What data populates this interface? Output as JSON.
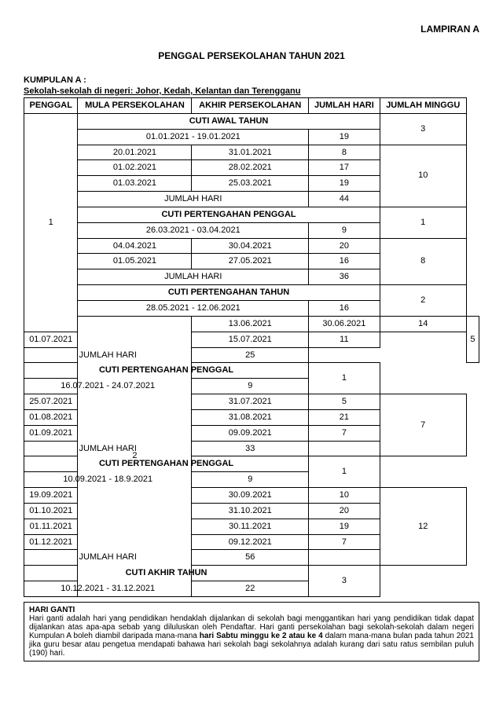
{
  "header": {
    "lampiran": "LAMPIRAN A",
    "title": "PENGGAL PERSEKOLAHAN TAHUN 2021",
    "kumpulan": "KUMPULAN A :",
    "subtitle": "Sekolah-sekolah di negeri: Johor, Kedah, Kelantan dan Terengganu"
  },
  "columns": {
    "penggal": "PENGGAL",
    "mula": "MULA PERSEKOLAHAN",
    "akhir": "AKHIR PERSEKOLAHAN",
    "hari": "JUMLAH HARI",
    "minggu": "JUMLAH MINGGU"
  },
  "sections": {
    "cuti_awal": "CUTI AWAL TAHUN",
    "cuti_ptp": "CUTI PERTENGAHAN PENGGAL",
    "cuti_ptt": "CUTI PERTENGAHAN TAHUN",
    "cuti_akhir": "CUTI AKHIR TAHUN",
    "jumlah_hari": "JUMLAH HARI"
  },
  "p1": {
    "label": "1",
    "awal_range": "01.01.2021  -  19.01.2021",
    "awal_hari": "19",
    "awal_minggu": "3",
    "b1": {
      "r1m": "20.01.2021",
      "r1a": "31.01.2021",
      "r1h": "8",
      "r2m": "01.02.2021",
      "r2a": "28.02.2021",
      "r2h": "17",
      "r3m": "01.03.2021",
      "r3a": "25.03.2021",
      "r3h": "19",
      "minggu": "10",
      "jumlah": "44"
    },
    "ptp1_range": "26.03.2021  -  03.04.2021",
    "ptp1_hari": "9",
    "ptp1_minggu": "1",
    "b2": {
      "r1m": "04.04.2021",
      "r1a": "30.04.2021",
      "r1h": "20",
      "r2m": "01.05.2021",
      "r2a": "27.05.2021",
      "r2h": "16",
      "minggu": "8",
      "jumlah": "36"
    },
    "ptt_range": "28.05.2021  -  12.06.2021",
    "ptt_hari": "16",
    "ptt_minggu": "2"
  },
  "p2": {
    "label": "2",
    "b1": {
      "r1m": "13.06.2021",
      "r1a": "30.06.2021",
      "r1h": "14",
      "r2m": "01.07.2021",
      "r2a": "15.07.2021",
      "r2h": "11",
      "minggu": "5",
      "jumlah": "25"
    },
    "ptp1_range": "16.07.2021  -  24.07.2021",
    "ptp1_hari": "9",
    "ptp1_minggu": "1",
    "b2": {
      "r1m": "25.07.2021",
      "r1a": "31.07.2021",
      "r1h": "5",
      "r2m": "01.08.2021",
      "r2a": "31.08.2021",
      "r2h": "21",
      "r3m": "01.09.2021",
      "r3a": "09.09.2021",
      "r3h": "7",
      "minggu": "7",
      "jumlah": "33"
    },
    "ptp2_range": "10.09.2021  -  18.9.2021",
    "ptp2_hari": "9",
    "ptp2_minggu": "1",
    "b3": {
      "r1m": "19.09.2021",
      "r1a": "30.09.2021",
      "r1h": "10",
      "r2m": "01.10.2021",
      "r2a": "31.10.2021",
      "r2h": "20",
      "r3m": "01.11.2021",
      "r3a": "30.11.2021",
      "r3h": "19",
      "r4m": "01.12.2021",
      "r4a": "09.12.2021",
      "r4h": "7",
      "minggu": "12",
      "jumlah": "56"
    },
    "akhir_range": "10.12.2021  -  31.12.2021",
    "akhir_hari": "22",
    "akhir_minggu": "3"
  },
  "note": {
    "title": "HARI GANTI",
    "body_a": "Hari ganti adalah hari yang pendidikan hendaklah dijalankan di sekolah bagi menggantikan hari yang pendidikan tidak dapat dijalankan atas apa-apa sebab yang diluluskan oleh Pendaftar. Hari ganti persekolahan bagi sekolah-sekolah dalam negeri Kumpulan A boleh diambil daripada mana-mana ",
    "body_bold": "hari Sabtu minggu ke 2 atau ke 4",
    "body_b": " dalam mana-mana bulan pada tahun 2021 jika guru besar atau pengetua mendapati bahawa hari sekolah bagi sekolahnya adalah kurang dari satu ratus sembilan puluh (190) hari."
  },
  "style": {
    "border_color": "#000000",
    "background_color": "#ffffff",
    "text_color": "#000000",
    "font_family": "Arial, sans-serif",
    "title_fontsize": 12,
    "body_fontsize": 11,
    "note_fontsize": 10
  }
}
